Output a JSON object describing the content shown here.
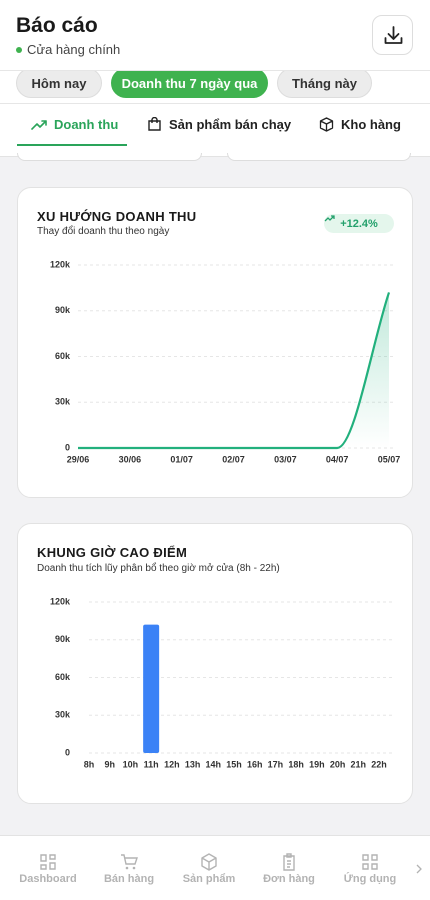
{
  "header": {
    "title": "Báo cáo",
    "store": "Cửa hàng chính"
  },
  "filters": [
    "Hôm nay",
    "Doanh thu 7 ngày qua",
    "Tháng này"
  ],
  "tabs": [
    "Doanh thu",
    "Sản phẩm bán chạy",
    "Kho hàng"
  ],
  "chart_data": [
    {
      "type": "line",
      "title": "XU HƯỚNG DOANH THU",
      "subtitle": "Thay đổi doanh thu theo ngày",
      "badge": "+12.4%",
      "categories": [
        "29/06",
        "30/06",
        "01/07",
        "02/07",
        "03/07",
        "04/07",
        "05/07"
      ],
      "values": [
        0,
        0,
        0,
        0,
        0,
        0,
        102000
      ],
      "color": "#22b07d",
      "ylim": [
        0,
        120000
      ],
      "yticks": [
        0,
        {
          "value": 30000,
          "label": "30k"
        },
        {
          "value": 60000,
          "label": "60k"
        },
        {
          "value": 90000,
          "label": "90k"
        },
        {
          "value": 120000,
          "label": "120k"
        }
      ],
      "grid": true
    },
    {
      "type": "bar",
      "title": "KHUNG GIỜ CAO ĐIỂM",
      "subtitle": "Doanh thu tích lũy phân bổ theo giờ mở cửa (8h - 22h)",
      "categories": [
        "8h",
        "9h",
        "10h",
        "11h",
        "12h",
        "13h",
        "14h",
        "15h",
        "16h",
        "17h",
        "18h",
        "19h",
        "20h",
        "21h",
        "22h"
      ],
      "values": [
        0,
        0,
        0,
        102000,
        0,
        0,
        0,
        0,
        0,
        0,
        0,
        0,
        0,
        0,
        0
      ],
      "color": "#3b82f6",
      "ylim": [
        0,
        120000
      ],
      "yticks": [
        0,
        {
          "value": 30000,
          "label": "30k"
        },
        {
          "value": 60000,
          "label": "60k"
        },
        {
          "value": 90000,
          "label": "90k"
        },
        {
          "value": 120000,
          "label": "120k"
        }
      ],
      "grid": true
    }
  ],
  "nav": [
    "Dashboard",
    "Bán hàng",
    "Sản phẩm",
    "Đơn hàng",
    "Ứng dụng"
  ]
}
